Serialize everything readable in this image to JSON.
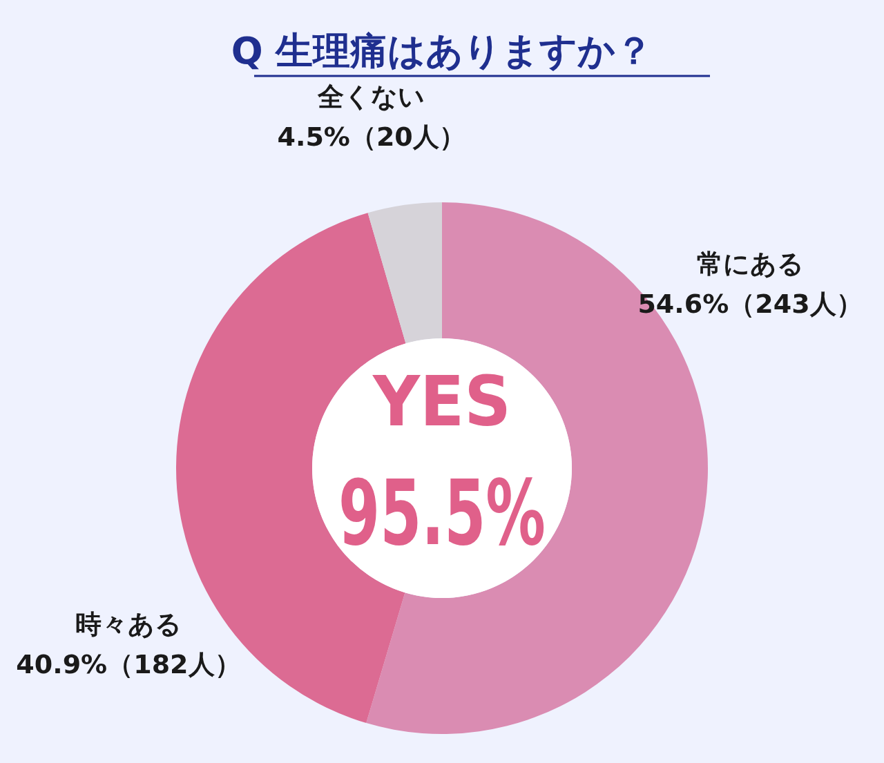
{
  "chart_data": {
    "type": "donut",
    "title": "Q 生理痛はありますか？",
    "categories": [
      "常にある",
      "時々ある",
      "全くない"
    ],
    "values": [
      54.6,
      40.9,
      4.5
    ],
    "value_labels": [
      "54.6%（243人）",
      "40.9%（182人）",
      "4.5%（20人）"
    ],
    "colors": [
      "#da8cb2",
      "#dc6b93",
      "#d6d3d9"
    ],
    "annotations": [
      "YES",
      "95.5%"
    ]
  }
}
